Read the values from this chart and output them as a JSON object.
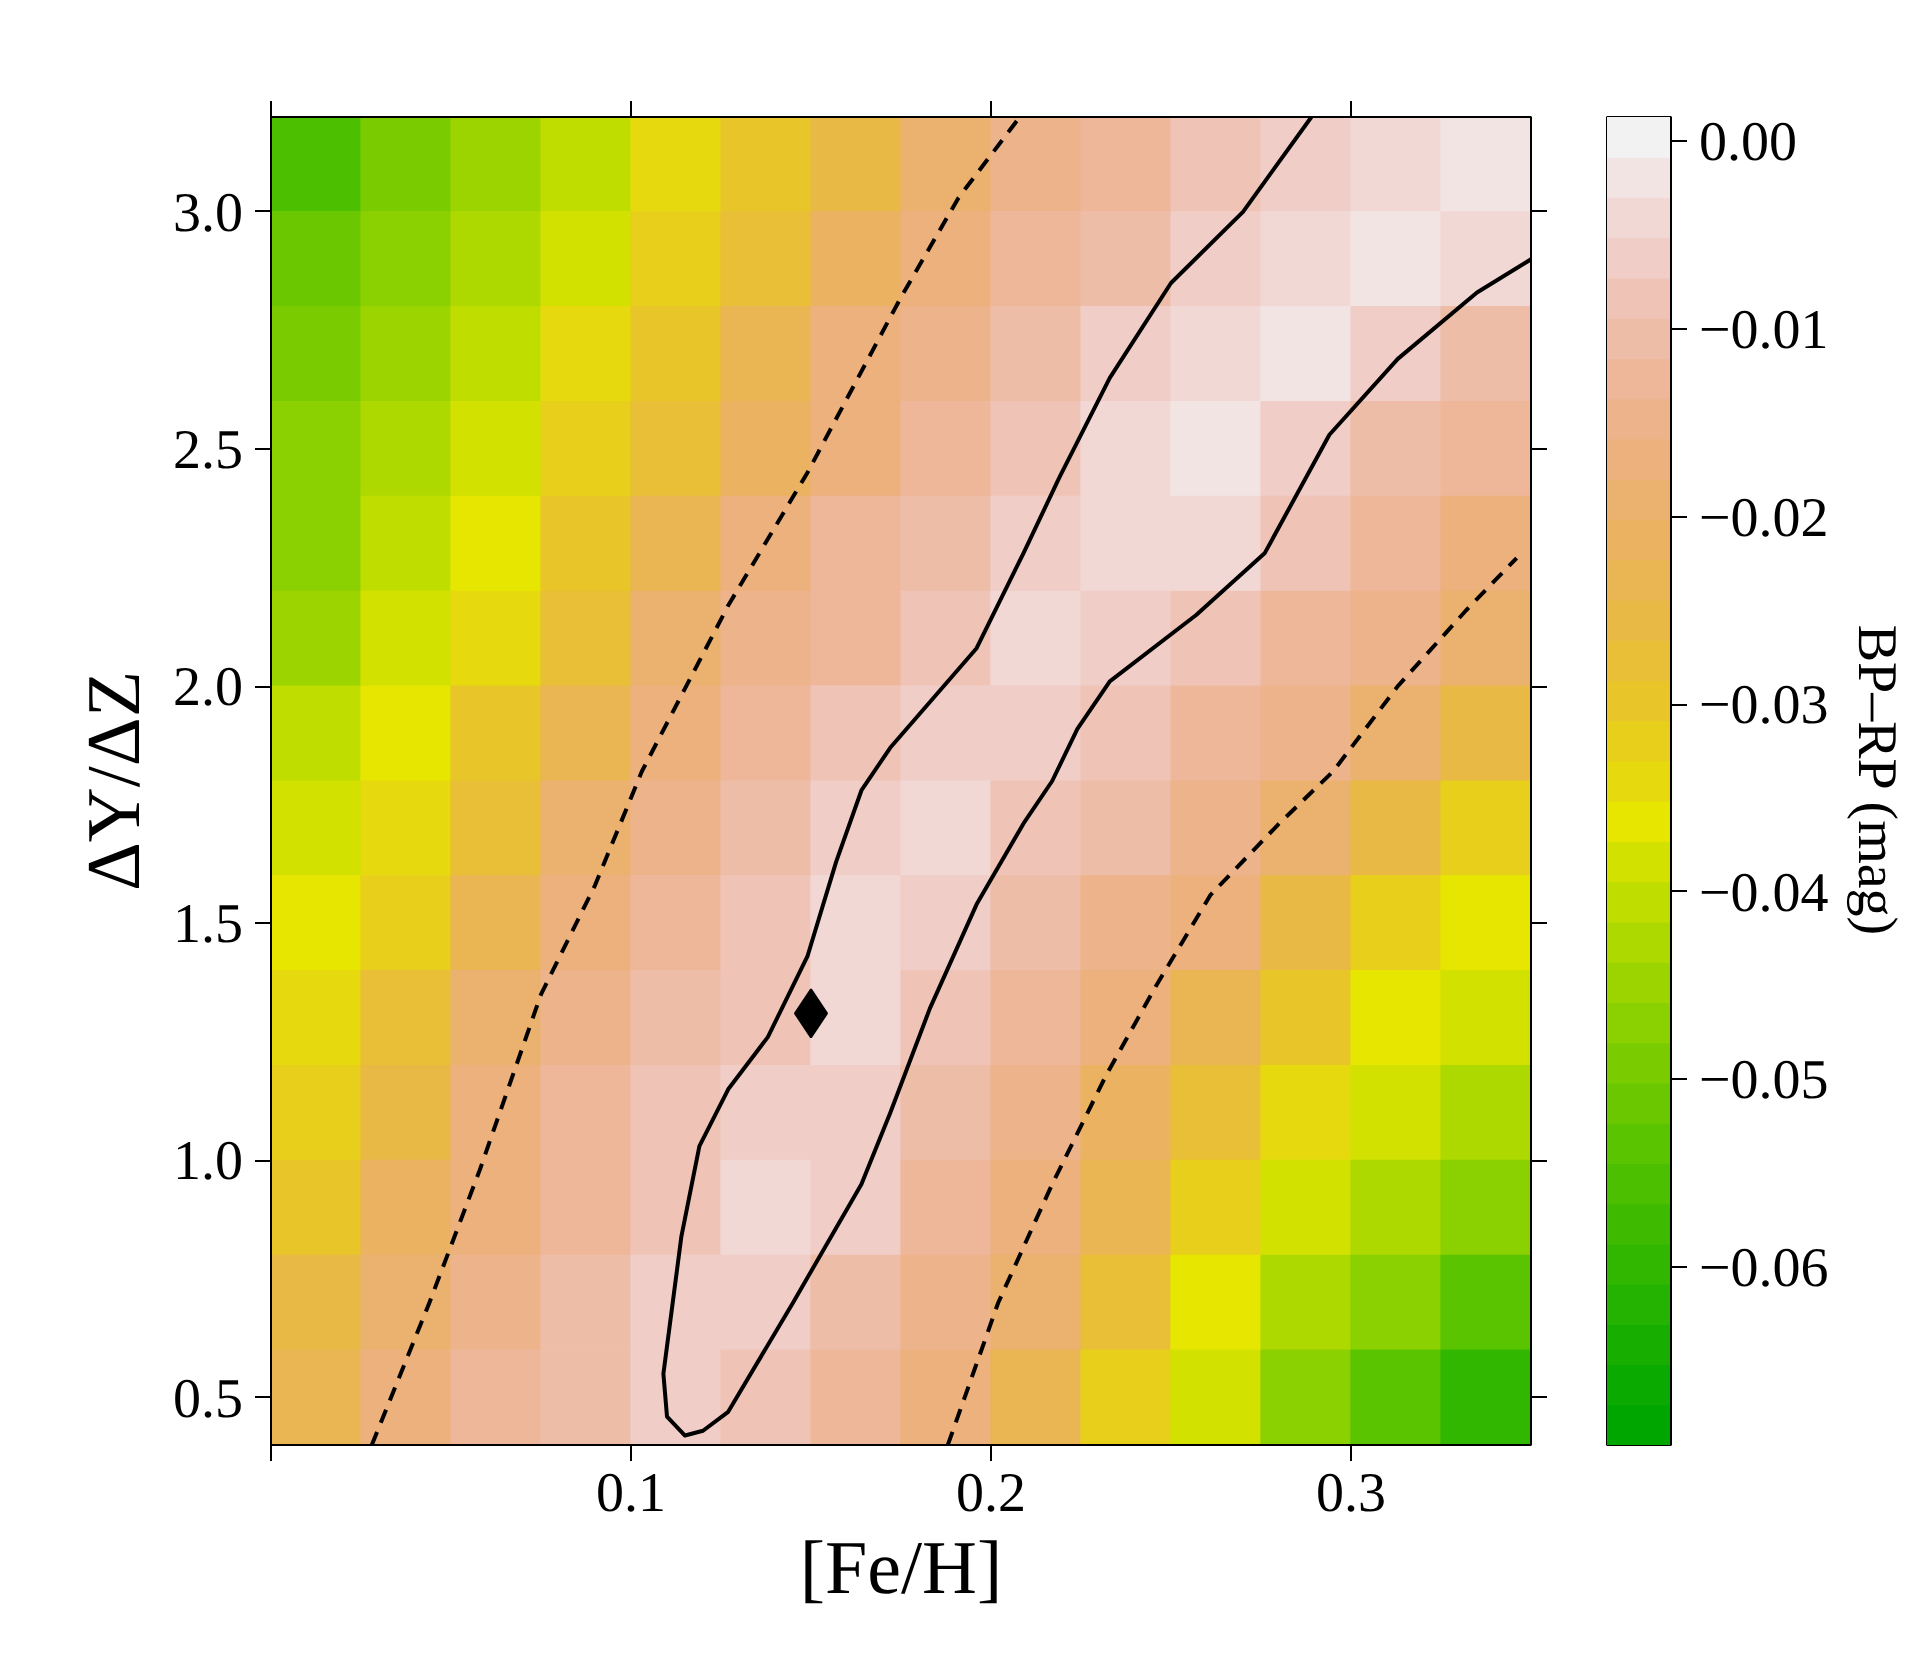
{
  "chart_data": {
    "type": "heatmap",
    "xlabel": "[Fe/H]",
    "ylabel": "ΔY/ΔZ",
    "clabel": "BP–RP (mag)",
    "cells": [
      [
        -0.055,
        -0.05,
        -0.045,
        -0.04,
        -0.035,
        -0.03,
        -0.025,
        -0.019,
        -0.015,
        -0.012,
        -0.009,
        -0.006,
        -0.003,
        -0.002
      ],
      [
        -0.052,
        -0.047,
        -0.043,
        -0.038,
        -0.033,
        -0.027,
        -0.021,
        -0.016,
        -0.013,
        -0.01,
        -0.006,
        -0.004,
        -0.002,
        -0.005
      ],
      [
        -0.05,
        -0.045,
        -0.04,
        -0.035,
        -0.03,
        -0.024,
        -0.018,
        -0.014,
        -0.01,
        -0.007,
        -0.004,
        -0.002,
        -0.007,
        -0.01
      ],
      [
        -0.048,
        -0.043,
        -0.038,
        -0.033,
        -0.027,
        -0.021,
        -0.016,
        -0.012,
        -0.008,
        -0.005,
        -0.002,
        -0.006,
        -0.01,
        -0.013
      ],
      [
        -0.046,
        -0.041,
        -0.036,
        -0.03,
        -0.024,
        -0.017,
        -0.013,
        -0.01,
        -0.007,
        -0.004,
        -0.004,
        -0.008,
        -0.012,
        -0.016
      ],
      [
        -0.044,
        -0.039,
        -0.034,
        -0.027,
        -0.02,
        -0.015,
        -0.012,
        -0.008,
        -0.005,
        -0.006,
        -0.009,
        -0.012,
        -0.015,
        -0.02
      ],
      [
        -0.041,
        -0.036,
        -0.03,
        -0.023,
        -0.016,
        -0.013,
        -0.009,
        -0.006,
        -0.006,
        -0.009,
        -0.012,
        -0.015,
        -0.019,
        -0.026
      ],
      [
        -0.039,
        -0.034,
        -0.027,
        -0.02,
        -0.014,
        -0.01,
        -0.007,
        -0.004,
        -0.008,
        -0.011,
        -0.015,
        -0.019,
        -0.026,
        -0.032
      ],
      [
        -0.037,
        -0.031,
        -0.024,
        -0.017,
        -0.013,
        -0.009,
        -0.005,
        -0.006,
        -0.01,
        -0.014,
        -0.018,
        -0.025,
        -0.031,
        -0.036
      ],
      [
        -0.035,
        -0.027,
        -0.02,
        -0.015,
        -0.011,
        -0.008,
        -0.004,
        -0.008,
        -0.012,
        -0.016,
        -0.023,
        -0.03,
        -0.036,
        -0.039
      ],
      [
        -0.032,
        -0.025,
        -0.017,
        -0.013,
        -0.009,
        -0.006,
        -0.006,
        -0.01,
        -0.015,
        -0.021,
        -0.028,
        -0.035,
        -0.039,
        -0.043
      ],
      [
        -0.029,
        -0.022,
        -0.016,
        -0.012,
        -0.008,
        -0.005,
        -0.007,
        -0.012,
        -0.017,
        -0.024,
        -0.032,
        -0.038,
        -0.043,
        -0.048
      ],
      [
        -0.026,
        -0.019,
        -0.014,
        -0.01,
        -0.007,
        -0.006,
        -0.01,
        -0.015,
        -0.02,
        -0.028,
        -0.036,
        -0.042,
        -0.048,
        -0.054
      ],
      [
        -0.024,
        -0.016,
        -0.013,
        -0.01,
        -0.007,
        -0.008,
        -0.012,
        -0.016,
        -0.024,
        -0.032,
        -0.039,
        -0.046,
        -0.053,
        -0.06
      ]
    ],
    "xlim": [
      0,
      0.35
    ],
    "ylim": [
      0.4,
      3.2
    ],
    "xticks": [
      {
        "value": 0,
        "label": null
      },
      0.1,
      0.2,
      0.3
    ],
    "yticks": [
      0.5,
      {
        "value": 1,
        "label": "1.0"
      },
      1.5,
      {
        "value": 2,
        "label": "2.0"
      },
      2.5,
      {
        "value": 3,
        "label": "3.0"
      }
    ],
    "clim": [
      -0.0695,
      0.0013
    ],
    "cticks": [
      {
        "value": 0,
        "label": "0.00"
      },
      {
        "value": -0.01,
        "label": "−0.01"
      },
      {
        "value": -0.02,
        "label": "−0.02"
      },
      {
        "value": -0.03,
        "label": "−0.03"
      },
      {
        "value": -0.04,
        "label": "−0.04"
      },
      {
        "value": -0.05,
        "label": "−0.05"
      },
      {
        "value": -0.06,
        "label": "−0.06"
      }
    ],
    "series": [
      {
        "type": "line",
        "color": "#000000",
        "line_style": "solid",
        "x": [
          0.289,
          0.27,
          0.25,
          0.233,
          0.219,
          0.209,
          0.196,
          0.172,
          0.164,
          0.157,
          0.149,
          0.138,
          0.127,
          0.119,
          0.114,
          0.109,
          0.11,
          0.115,
          0.12,
          0.127,
          0.145,
          0.164,
          0.172,
          0.183,
          0.196,
          0.209,
          0.217,
          0.224,
          0.233,
          0.257,
          0.276,
          0.294,
          0.313,
          0.335,
          0.35
        ],
        "values": [
          3.2,
          3.0,
          2.85,
          2.65,
          2.44,
          2.28,
          2.08,
          1.87,
          1.78,
          1.63,
          1.43,
          1.26,
          1.15,
          1.03,
          0.84,
          0.55,
          0.46,
          0.42,
          0.43,
          0.47,
          0.7,
          0.95,
          1.1,
          1.32,
          1.54,
          1.71,
          1.8,
          1.91,
          2.01,
          2.15,
          2.28,
          2.53,
          2.69,
          2.83,
          2.9
        ]
      },
      {
        "type": "line",
        "color": "#000000",
        "line_style": "dashed",
        "x": [
          0.028,
          0.044,
          0.058,
          0.075,
          0.09,
          0.103,
          0.127,
          0.149,
          0.175,
          0.191,
          0.208
        ],
        "values": [
          0.4,
          0.7,
          0.98,
          1.35,
          1.58,
          1.82,
          2.17,
          2.45,
          2.82,
          3.03,
          3.2
        ]
      },
      {
        "type": "line",
        "color": "#000000",
        "line_style": "dashed",
        "x": [
          0.188,
          0.202,
          0.217,
          0.232,
          0.246,
          0.261,
          0.28,
          0.295,
          0.313,
          0.332,
          0.346
        ],
        "values": [
          0.4,
          0.7,
          0.95,
          1.18,
          1.37,
          1.56,
          1.71,
          1.82,
          2.0,
          2.16,
          2.27
        ]
      },
      {
        "type": "scatter",
        "color": "#000000",
        "marker": "diamond",
        "x": [
          0.15
        ],
        "values": [
          1.31
        ]
      }
    ]
  }
}
